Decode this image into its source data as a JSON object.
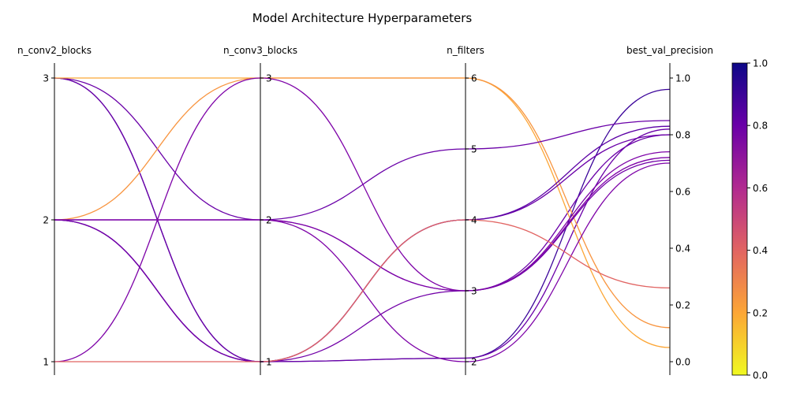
{
  "chart_data": {
    "type": "parallel-coordinates",
    "title": "Model Architecture Hyperparameters",
    "axes": [
      {
        "label": "n_conv2_blocks",
        "range": [
          1,
          3
        ],
        "ticks": [
          "1",
          "2",
          "3"
        ],
        "tick_side": "left"
      },
      {
        "label": "n_conv3_blocks",
        "range": [
          1,
          3
        ],
        "ticks": [
          "1",
          "2",
          "3"
        ],
        "tick_side": "right"
      },
      {
        "label": "n_filters",
        "range": [
          2,
          6
        ],
        "ticks": [
          "2",
          "3",
          "4",
          "5",
          "6"
        ],
        "tick_side": "right"
      },
      {
        "label": "best_val_precision",
        "range": [
          0,
          1
        ],
        "ticks": [
          "0.0",
          "0.2",
          "0.4",
          "0.6",
          "0.8",
          "1.0"
        ],
        "tick_side": "right"
      }
    ],
    "lines": [
      {
        "values": [
          3,
          1,
          2.05,
          0.96
        ],
        "color": "#3b049a"
      },
      {
        "values": [
          3,
          1,
          2.05,
          0.82
        ],
        "color": "#6a00a8"
      },
      {
        "values": [
          3,
          2,
          3,
          0.8
        ],
        "color": "#6a00a8"
      },
      {
        "values": [
          3,
          3,
          6,
          0.05
        ],
        "color": "#fca636"
      },
      {
        "values": [
          2,
          3,
          6,
          0.12
        ],
        "color": "#f89540"
      },
      {
        "values": [
          2,
          2,
          5,
          0.85
        ],
        "color": "#6a00a8"
      },
      {
        "values": [
          2,
          2,
          3,
          0.72
        ],
        "color": "#7e03a8"
      },
      {
        "values": [
          2,
          1,
          4,
          0.8
        ],
        "color": "#6a00a8"
      },
      {
        "values": [
          2,
          1,
          4,
          0.83
        ],
        "color": "#5c01a6"
      },
      {
        "values": [
          2,
          1,
          3,
          0.71
        ],
        "color": "#7201a8"
      },
      {
        "values": [
          2,
          2,
          2,
          0.7
        ],
        "color": "#7e03a8"
      },
      {
        "values": [
          1,
          3,
          3,
          0.74
        ],
        "color": "#7e03a8"
      },
      {
        "values": [
          1,
          1,
          4,
          0.26
        ],
        "color": "#e16462"
      }
    ],
    "colorbar": {
      "range": [
        0,
        1
      ],
      "ticks": [
        "0.0",
        "0.2",
        "0.4",
        "0.6",
        "0.8",
        "1.0"
      ],
      "colormap": "plasma",
      "stops": [
        "#f0f921",
        "#fca636",
        "#e16462",
        "#b12a90",
        "#6a00a8",
        "#0d0887"
      ]
    }
  }
}
